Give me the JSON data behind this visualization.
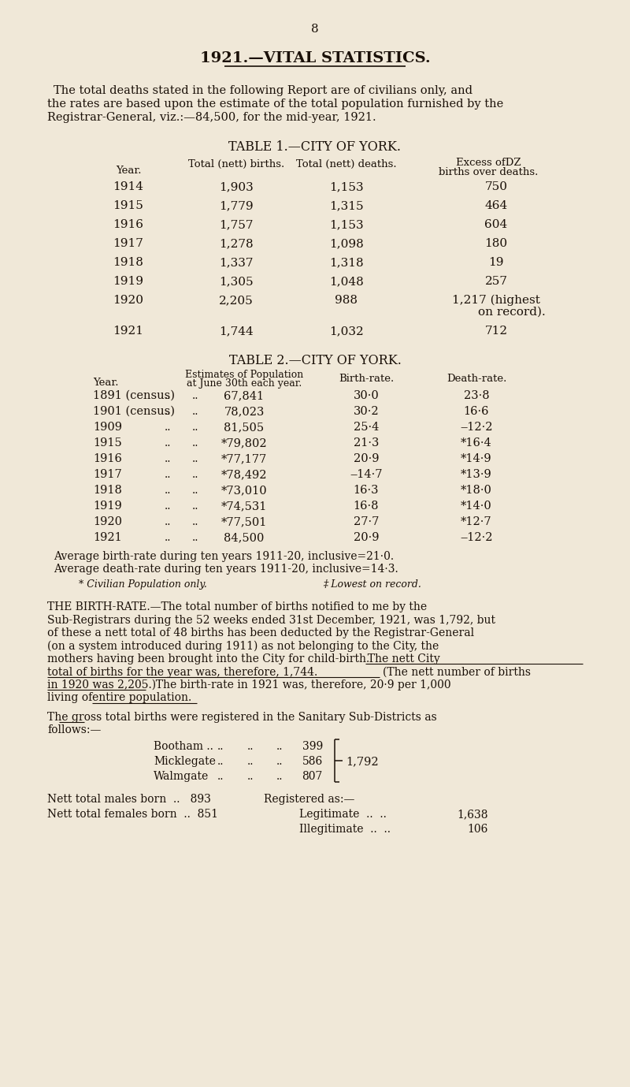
{
  "page_number": "8",
  "main_title": "1921.—VITAL STATISTICS.",
  "bg_color": "#f0e8d8",
  "text_color": "#1a1008",
  "intro_line1": "The total deaths stated in the following Report are of civilians only, and",
  "intro_line2": "the rates are based upon the estimate of the total population furnished by the",
  "intro_line3": "Registrar-General, viz.:—84,500, for the mid-year, 1921.",
  "table1_title": "TABLE 1.—CITY OF YORK.",
  "table1_h1": "Year.",
  "table1_h2": "Total (nett) births.",
  "table1_h3": "Total (nett) deaths.",
  "table1_h4a": "Excess ofǱ",
  "table1_h4b": "births over deaths.",
  "table1_rows": [
    [
      "1914",
      "1,903",
      "1,153",
      "750",
      ""
    ],
    [
      "1915",
      "1,779",
      "1,315",
      "464",
      ""
    ],
    [
      "1916",
      "1,757",
      "1,153",
      "604",
      ""
    ],
    [
      "1917",
      "1,278",
      "1,098",
      "180",
      ""
    ],
    [
      "1918",
      "1,337",
      "1,318",
      "19",
      ""
    ],
    [
      "1919",
      "1,305",
      "1,048",
      "257",
      ""
    ],
    [
      "1920",
      "2,205",
      "988",
      "1,217 (highest",
      "on record)."
    ],
    [
      "1921",
      "1,744",
      "1,032",
      "712",
      ""
    ]
  ],
  "table2_title": "TABLE 2.—CITY OF YORK.",
  "table2_h1": "Year.",
  "table2_h2a": "Estimates of Population",
  "table2_h2b": "at June 30th each year.",
  "table2_h3": "Birth-rate.",
  "table2_h4": "Death-rate.",
  "table2_rows": [
    [
      "1891 (census)",
      "..",
      "67,841",
      "30·0",
      "23·8"
    ],
    [
      "1901 (census)",
      "..",
      "78,023",
      "30·2",
      "16·6"
    ],
    [
      "1909",
      "..",
      "81,505",
      "25·4",
      "‒12·2"
    ],
    [
      "1915",
      "..",
      "*79,802",
      "21·3",
      "*16·4"
    ],
    [
      "1916",
      "..",
      "*77,177",
      "20·9",
      "*14·9"
    ],
    [
      "1917",
      "..",
      "*78,492",
      "‒14·7",
      "*13·9"
    ],
    [
      "1918",
      "..",
      "*73,010",
      "16·3",
      "*18·0"
    ],
    [
      "1919",
      "..",
      "*74,531",
      "16·8",
      "*14·0"
    ],
    [
      "1920",
      "..",
      "*77,501",
      "27·7",
      "*12·7"
    ],
    [
      "1921",
      "..",
      "84,500",
      "20·9",
      "‒12·2"
    ]
  ],
  "avg1": "Average birth-rate during ten years 1911-20, inclusive=21·0.",
  "avg2": "Average death-rate during ten years 1911-20, inclusive=14·3.",
  "fn1": "* Civilian Population only.",
  "fn2": "‡ Lowest on record.",
  "br_lines": [
    "THE BIRTH-RATE.—The total number of births notified to me by the",
    "Sub-Registrars during the 52 weeks ended 31st December, 1921, was 1,792, but",
    "of these a nett total of 48 births has been deducted by the Registrar-General",
    "(on a system introduced during 1911) as not belonging to the City, the",
    "mothers having been brought into the City for child-birth."
  ],
  "br_underline1a": "The nett City",
  "br_line6a": "total of births for the year was, therefore, 1,744.",
  "br_line6b": "(The nett number of births",
  "br_line7a": "in 1920 was 2,205.)",
  "br_line7b": "The birth-rate in 1921 was, therefore, 20·9 per 1,000",
  "br_line8a": "living of",
  "br_underline8b": "entire population.",
  "gross_line1": "The gross total births were registered in the Sanitary Sub-Districts as",
  "gross_line2": "follows:—",
  "dist_names": [
    "Bootham ..",
    "Micklegate",
    "Walmgate"
  ],
  "dist_dots": [
    "..",
    "..",
    ".."
  ],
  "dist_dots2": [
    "..",
    "..",
    ".."
  ],
  "dist_vals": [
    "399",
    "586",
    "807"
  ],
  "dist_total": "1,792",
  "nett_males_label": "Nett total males born",
  "nett_males_dots": "..",
  "nett_males_val": "893",
  "nett_females_label": "Nett total females born",
  "nett_females_dots": "..",
  "nett_females_val": "851",
  "reg_label": "Registered as:—",
  "legit_label": "Legitimate",
  "legit_dots": "..",
  "legit_dots2": "..",
  "legit_val": "1,638",
  "illegit_label": "Illegitimate",
  "illegit_dots": "..",
  "illegit_dots2": "..",
  "illegit_val": "106"
}
